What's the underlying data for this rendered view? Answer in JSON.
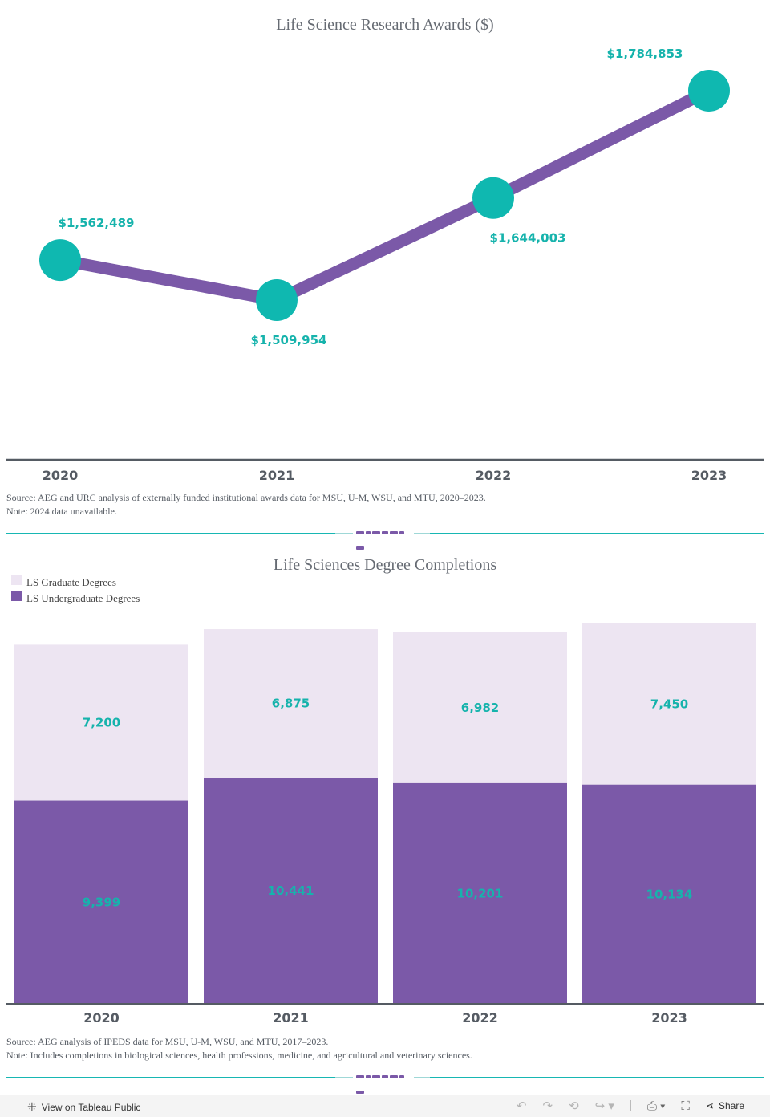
{
  "chart_data": [
    {
      "type": "line",
      "title": "Life Science Research Awards ($)",
      "categories": [
        "2020",
        "2021",
        "2022",
        "2023"
      ],
      "values": [
        1562489,
        1509954,
        1644003,
        1784853
      ],
      "value_labels": [
        "$1,562,489",
        "$1,509,954",
        "$1,644,003",
        "$1,784,853"
      ],
      "label_positions": [
        "above",
        "below",
        "below",
        "above"
      ],
      "ylim": [
        1300000,
        1800000
      ],
      "xlabel": "",
      "ylabel": "",
      "grid": false
    },
    {
      "type": "bar",
      "stacked": true,
      "title": "Life Sciences Degree Completions",
      "categories": [
        "2020",
        "2021",
        "2022",
        "2023"
      ],
      "series": [
        {
          "name": "LS Undergraduate Degrees",
          "values": [
            9399,
            10441,
            10201,
            10134
          ],
          "labels": [
            "9,399",
            "10,441",
            "10,201",
            "10,134"
          ]
        },
        {
          "name": "LS Graduate Degrees",
          "values": [
            7200,
            6875,
            6982,
            7450
          ],
          "labels": [
            "7,200",
            "6,875",
            "6,982",
            "7,450"
          ]
        }
      ],
      "legend": [
        "LS Graduate Degrees",
        "LS Undergraduate Degrees"
      ],
      "legend_position": "top-left",
      "ylim": [
        0,
        17800
      ],
      "grid": false
    }
  ],
  "colors": {
    "line": "#7b59a8",
    "marker": "#0fb8b0",
    "label": "#16b3ac",
    "undergrad": "#7b59a8",
    "grad": "#ede5f2",
    "axis": "#555b63",
    "title": "#666b73"
  },
  "notes": {
    "awards_source": "Source: AEG and URC analysis of externally funded institutional awards data for MSU, U-M, WSU, and MTU, 2020–2023.",
    "awards_note": "Note: 2024 data unavailable.",
    "degrees_source": "Source: AEG analysis of IPEDS data for MSU, U-M, WSU, and MTU, 2017–2023.",
    "degrees_note": "Note: Includes completions in biological sciences, health professions, medicine, and agricultural and veterinary sciences."
  },
  "toolbar": {
    "tableau_icon": "tableau-logo-icon",
    "view_on_tableau": "View on Tableau Public",
    "share": "Share"
  }
}
